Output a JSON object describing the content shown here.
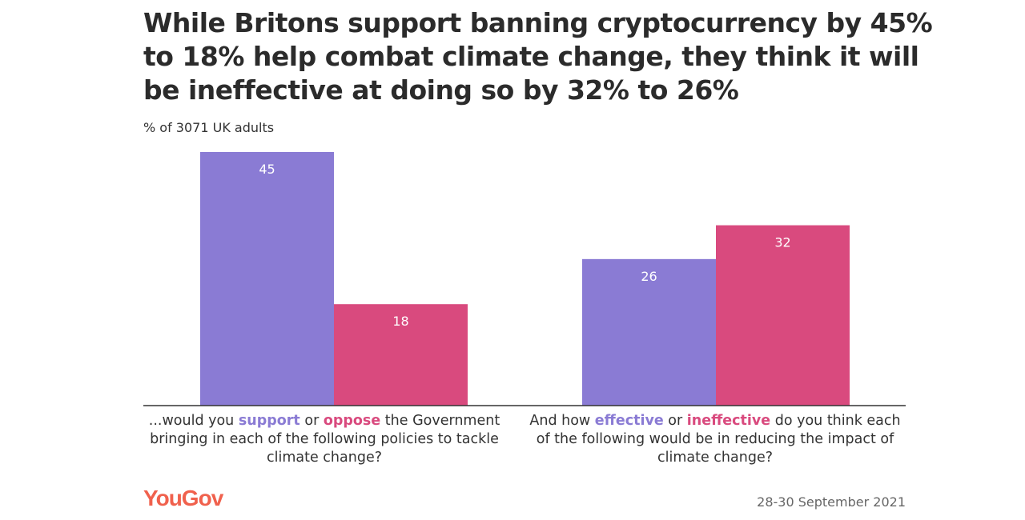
{
  "chart_data": {
    "type": "bar",
    "title": "While Britons support banning cryptocurrency by 45% to 18% help combat climate change, they think it will be ineffective at doing so by 32% to 26%",
    "subtitle": "% of 3071 UK adults",
    "categories": [
      {
        "parts": [
          "...would you ",
          "support",
          " or ",
          "oppose",
          " the Government bringing in each of the following policies to tackle climate change?"
        ]
      },
      {
        "parts": [
          "And how ",
          "effective",
          " or ",
          "ineffective",
          " do you think each of the following would be in reducing the impact of climate change?"
        ]
      }
    ],
    "series": [
      {
        "values": [
          45,
          26
        ],
        "color": "#8a7bd4"
      },
      {
        "values": [
          18,
          32
        ],
        "color": "#d94a7e"
      }
    ],
    "ylim": [
      0,
      45
    ],
    "grid": false,
    "data_labels": true
  },
  "footer": {
    "logo": "YouGov",
    "date": "28-30 September 2021"
  }
}
